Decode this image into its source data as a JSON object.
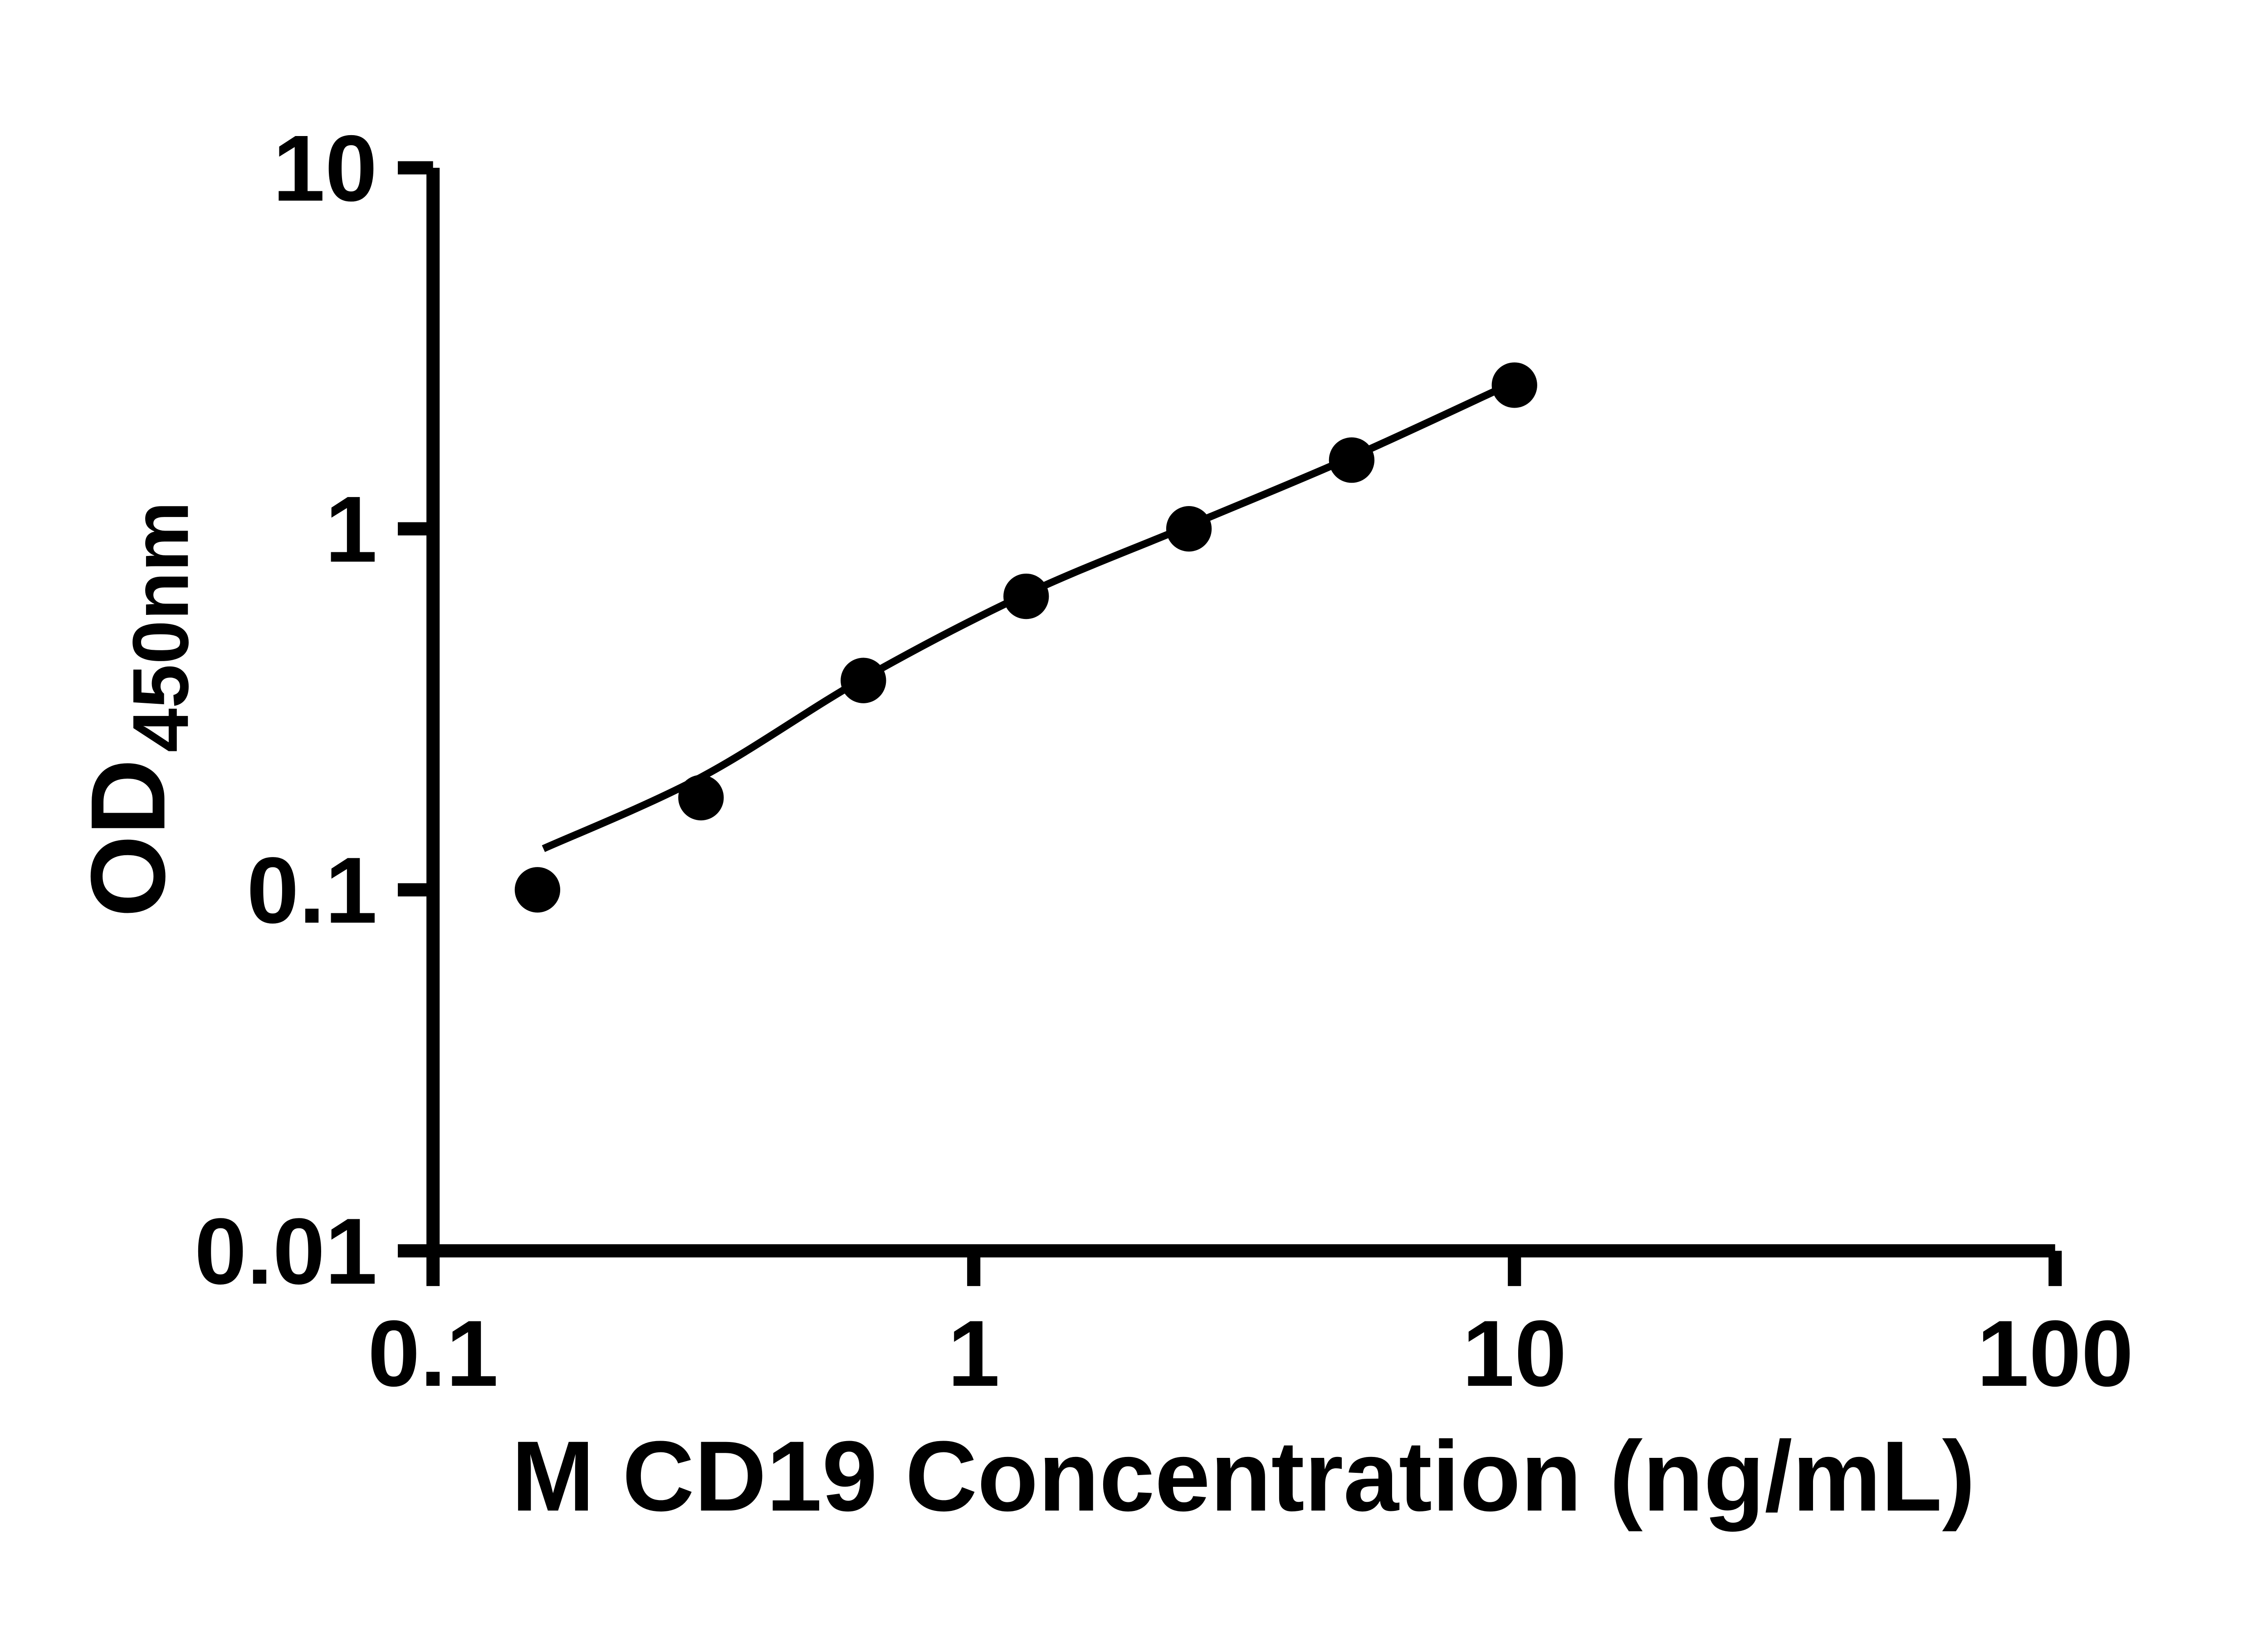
{
  "chart_data": {
    "type": "scatter",
    "xlabel": "M CD19 Concentration (ng/mL)",
    "ylabel": "OD450nm",
    "ylabel_main": "OD",
    "ylabel_sub": "450nm",
    "x_scale": "log",
    "y_scale": "log",
    "xlim": [
      0.1,
      100
    ],
    "ylim": [
      0.01,
      10
    ],
    "x_ticks": {
      "values": [
        0.1,
        1,
        10,
        100
      ],
      "labels": [
        "0.1",
        "1",
        "10",
        "100"
      ]
    },
    "y_ticks": {
      "values": [
        0.01,
        0.1,
        1,
        10
      ],
      "labels": [
        "0.01",
        "0.1",
        "1",
        "10"
      ]
    },
    "grid": false,
    "legend": "none",
    "series": [
      {
        "name": "M CD19 standard points",
        "role": "scatter",
        "x": [
          0.156,
          0.313,
          0.625,
          1.25,
          2.5,
          5,
          10
        ],
        "y": [
          0.1,
          0.18,
          0.38,
          0.65,
          1.0,
          1.55,
          2.5
        ]
      },
      {
        "name": "standard curve fit line",
        "role": "line",
        "x": [
          0.16,
          0.313,
          0.625,
          1.25,
          2.5,
          5,
          10
        ],
        "y": [
          0.13,
          0.205,
          0.385,
          0.66,
          1.02,
          1.58,
          2.55
        ]
      }
    ],
    "colors": {
      "marker": "#000000",
      "line": "#000000",
      "axis": "#000000",
      "background": "#ffffff"
    }
  }
}
